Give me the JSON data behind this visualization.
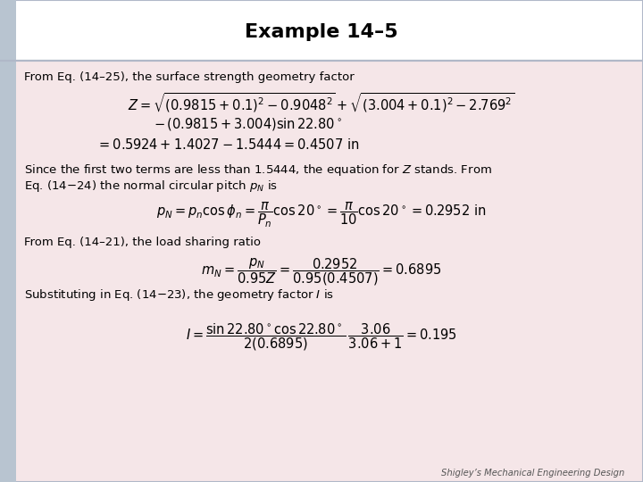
{
  "title": "Example 14–5",
  "background_color": "#f5e6e8",
  "border_color": "#b0b8c8",
  "title_color": "#000000",
  "text_color": "#000000",
  "footer_text": "Shigley’s Mechanical Engineering Design",
  "line1": "From Eq. (14–25), the surface strength geometry factor",
  "line2a": "Since the first two terms are less than 1.5444, the equation for ",
  "line2b": "Eq. (14–24) the normal circular pitch ",
  "line3": "From Eq. (14–21), the load sharing ratio",
  "line4": "Substituting in Eq. (14–23), the geometry factor ",
  "fs_text": 9.5,
  "fs_eq": 10.5,
  "sidebar_color": "#b8c4d0",
  "header_color": "#ffffff"
}
